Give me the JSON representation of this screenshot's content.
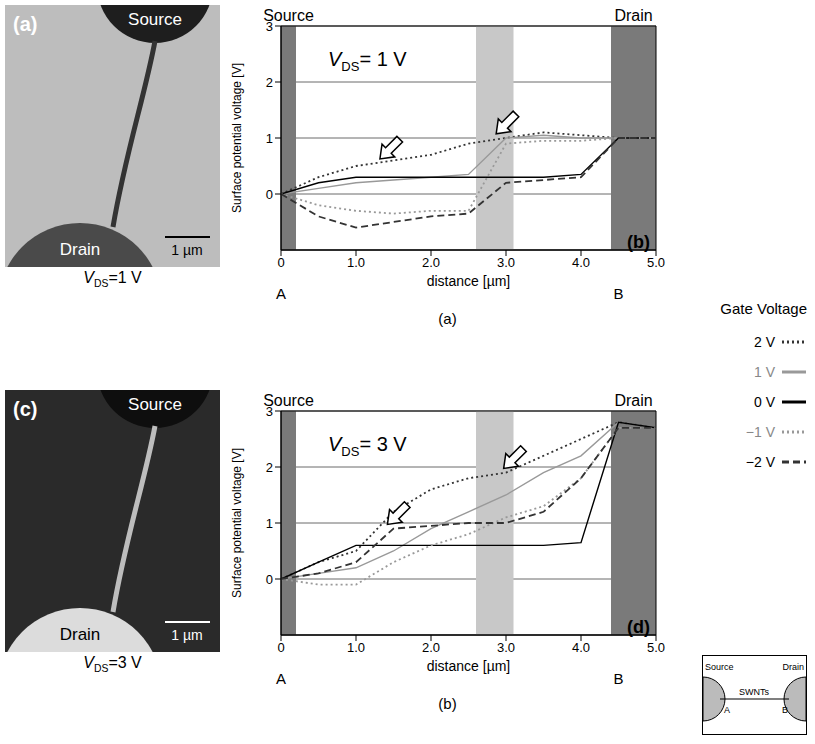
{
  "chart_data": [
    {
      "type": "line",
      "panel_letter": "(b)",
      "caption": "(a)",
      "annotation": "VDS= 1 V",
      "xlabel": "distance [µm]",
      "ylabel": "Surface potential voltage [V]",
      "xlim": [
        0,
        5
      ],
      "xticks": [
        0,
        {
          "value": 1,
          "label": "1.0"
        },
        {
          "value": 2,
          "label": "2.0"
        },
        {
          "value": 3,
          "label": "3.0"
        },
        {
          "value": 4,
          "label": "4.0"
        },
        {
          "value": 5,
          "label": "5.0"
        }
      ],
      "ylim": [
        -1,
        3
      ],
      "yticks": [
        0,
        1,
        2,
        3
      ],
      "grid": true,
      "legend": "right",
      "regions": [
        {
          "label": "Source",
          "x": [
            0,
            0.2
          ],
          "color": "#7a7a7a"
        },
        {
          "x": [
            2.6,
            3.1
          ],
          "color": "#c8c8c8"
        },
        {
          "label": "Drain",
          "x": [
            4.4,
            5
          ],
          "color": "#7a7a7a"
        }
      ],
      "markers": [
        {
          "label": "A",
          "x": 0
        },
        {
          "label": "B",
          "x": 4.5
        }
      ],
      "x": [
        0,
        0.5,
        1,
        1.5,
        2,
        2.5,
        3,
        3.5,
        4,
        4.5,
        5
      ],
      "series": [
        {
          "name": "2 V",
          "color": "#333333",
          "line_style": "dotted",
          "values": [
            0,
            0.3,
            0.5,
            0.6,
            0.7,
            0.9,
            1.0,
            1.1,
            1.05,
            1.0,
            1.0
          ]
        },
        {
          "name": "1 V",
          "color": "#999999",
          "line_style": "solid",
          "values": [
            0,
            0.1,
            0.2,
            0.25,
            0.3,
            0.35,
            1.0,
            1.05,
            1.0,
            1.0,
            1.0
          ]
        },
        {
          "name": "0 V",
          "color": "#000000",
          "line_style": "solid",
          "values": [
            0,
            0.2,
            0.3,
            0.3,
            0.3,
            0.3,
            0.3,
            0.3,
            0.35,
            1.0,
            1.0
          ]
        },
        {
          "name": "−1 V",
          "color": "#999999",
          "line_style": "dotted",
          "values": [
            0,
            -0.2,
            -0.3,
            -0.35,
            -0.3,
            -0.3,
            0.9,
            0.95,
            0.95,
            1.0,
            1.0
          ]
        },
        {
          "name": "−2 V",
          "color": "#333333",
          "line_style": "dashed",
          "values": [
            0,
            -0.4,
            -0.6,
            -0.5,
            -0.4,
            -0.35,
            0.2,
            0.25,
            0.3,
            1.0,
            1.0
          ]
        }
      ]
    },
    {
      "type": "line",
      "panel_letter": "(d)",
      "caption": "(b)",
      "annotation": "VDS= 3 V",
      "xlabel": "distance [µm]",
      "ylabel": "Surface potential voltage [V]",
      "xlim": [
        0,
        5
      ],
      "xticks": [
        0,
        {
          "value": 1,
          "label": "1.0"
        },
        {
          "value": 2,
          "label": "2.0"
        },
        {
          "value": 3,
          "label": "3.0"
        },
        {
          "value": 4,
          "label": "4.0"
        },
        {
          "value": 5,
          "label": "5.0"
        }
      ],
      "ylim": [
        -1,
        3
      ],
      "yticks": [
        0,
        1,
        2,
        3
      ],
      "grid": true,
      "legend": "right",
      "regions": [
        {
          "label": "Source",
          "x": [
            0,
            0.2
          ],
          "color": "#7a7a7a"
        },
        {
          "x": [
            2.6,
            3.1
          ],
          "color": "#c8c8c8"
        },
        {
          "label": "Drain",
          "x": [
            4.4,
            5
          ],
          "color": "#7a7a7a"
        }
      ],
      "markers": [
        {
          "label": "A",
          "x": 0
        },
        {
          "label": "B",
          "x": 4.5
        }
      ],
      "x": [
        0,
        0.5,
        1,
        1.5,
        2,
        2.5,
        3,
        3.5,
        4,
        4.5,
        5
      ],
      "series": [
        {
          "name": "2 V",
          "color": "#333333",
          "line_style": "dotted",
          "values": [
            0,
            0.3,
            0.5,
            1.2,
            1.6,
            1.8,
            1.9,
            2.2,
            2.5,
            2.8,
            2.7
          ]
        },
        {
          "name": "1 V",
          "color": "#999999",
          "line_style": "solid",
          "values": [
            0,
            0.1,
            0.2,
            0.5,
            0.9,
            1.2,
            1.5,
            1.9,
            2.2,
            2.8,
            2.7
          ]
        },
        {
          "name": "0 V",
          "color": "#000000",
          "line_style": "solid",
          "values": [
            0,
            0.3,
            0.6,
            0.6,
            0.6,
            0.6,
            0.6,
            0.6,
            0.65,
            2.8,
            2.7
          ]
        },
        {
          "name": "−1 V",
          "color": "#999999",
          "line_style": "dotted",
          "values": [
            0,
            -0.1,
            -0.1,
            0.3,
            0.6,
            0.8,
            1.1,
            1.3,
            1.8,
            2.7,
            2.7
          ]
        },
        {
          "name": "−2 V",
          "color": "#333333",
          "line_style": "dashed",
          "values": [
            0,
            0.1,
            0.3,
            0.9,
            0.95,
            1.0,
            1.0,
            1.2,
            1.8,
            2.7,
            2.7
          ]
        }
      ]
    }
  ],
  "images": [
    {
      "letter": "(a)",
      "top_label": "Source",
      "bottom_label": "Drain",
      "scale_bar": "1 µm",
      "caption": "VDS=1 V"
    },
    {
      "letter": "(c)",
      "top_label": "Source",
      "bottom_label": "Drain",
      "scale_bar": "1 µm",
      "caption": "VDS=3 V"
    }
  ],
  "legend_title": "Gate Voltage",
  "inset": {
    "left": "Source",
    "right": "Drain",
    "middle": "SWNTs",
    "a": "A",
    "b": "B"
  }
}
